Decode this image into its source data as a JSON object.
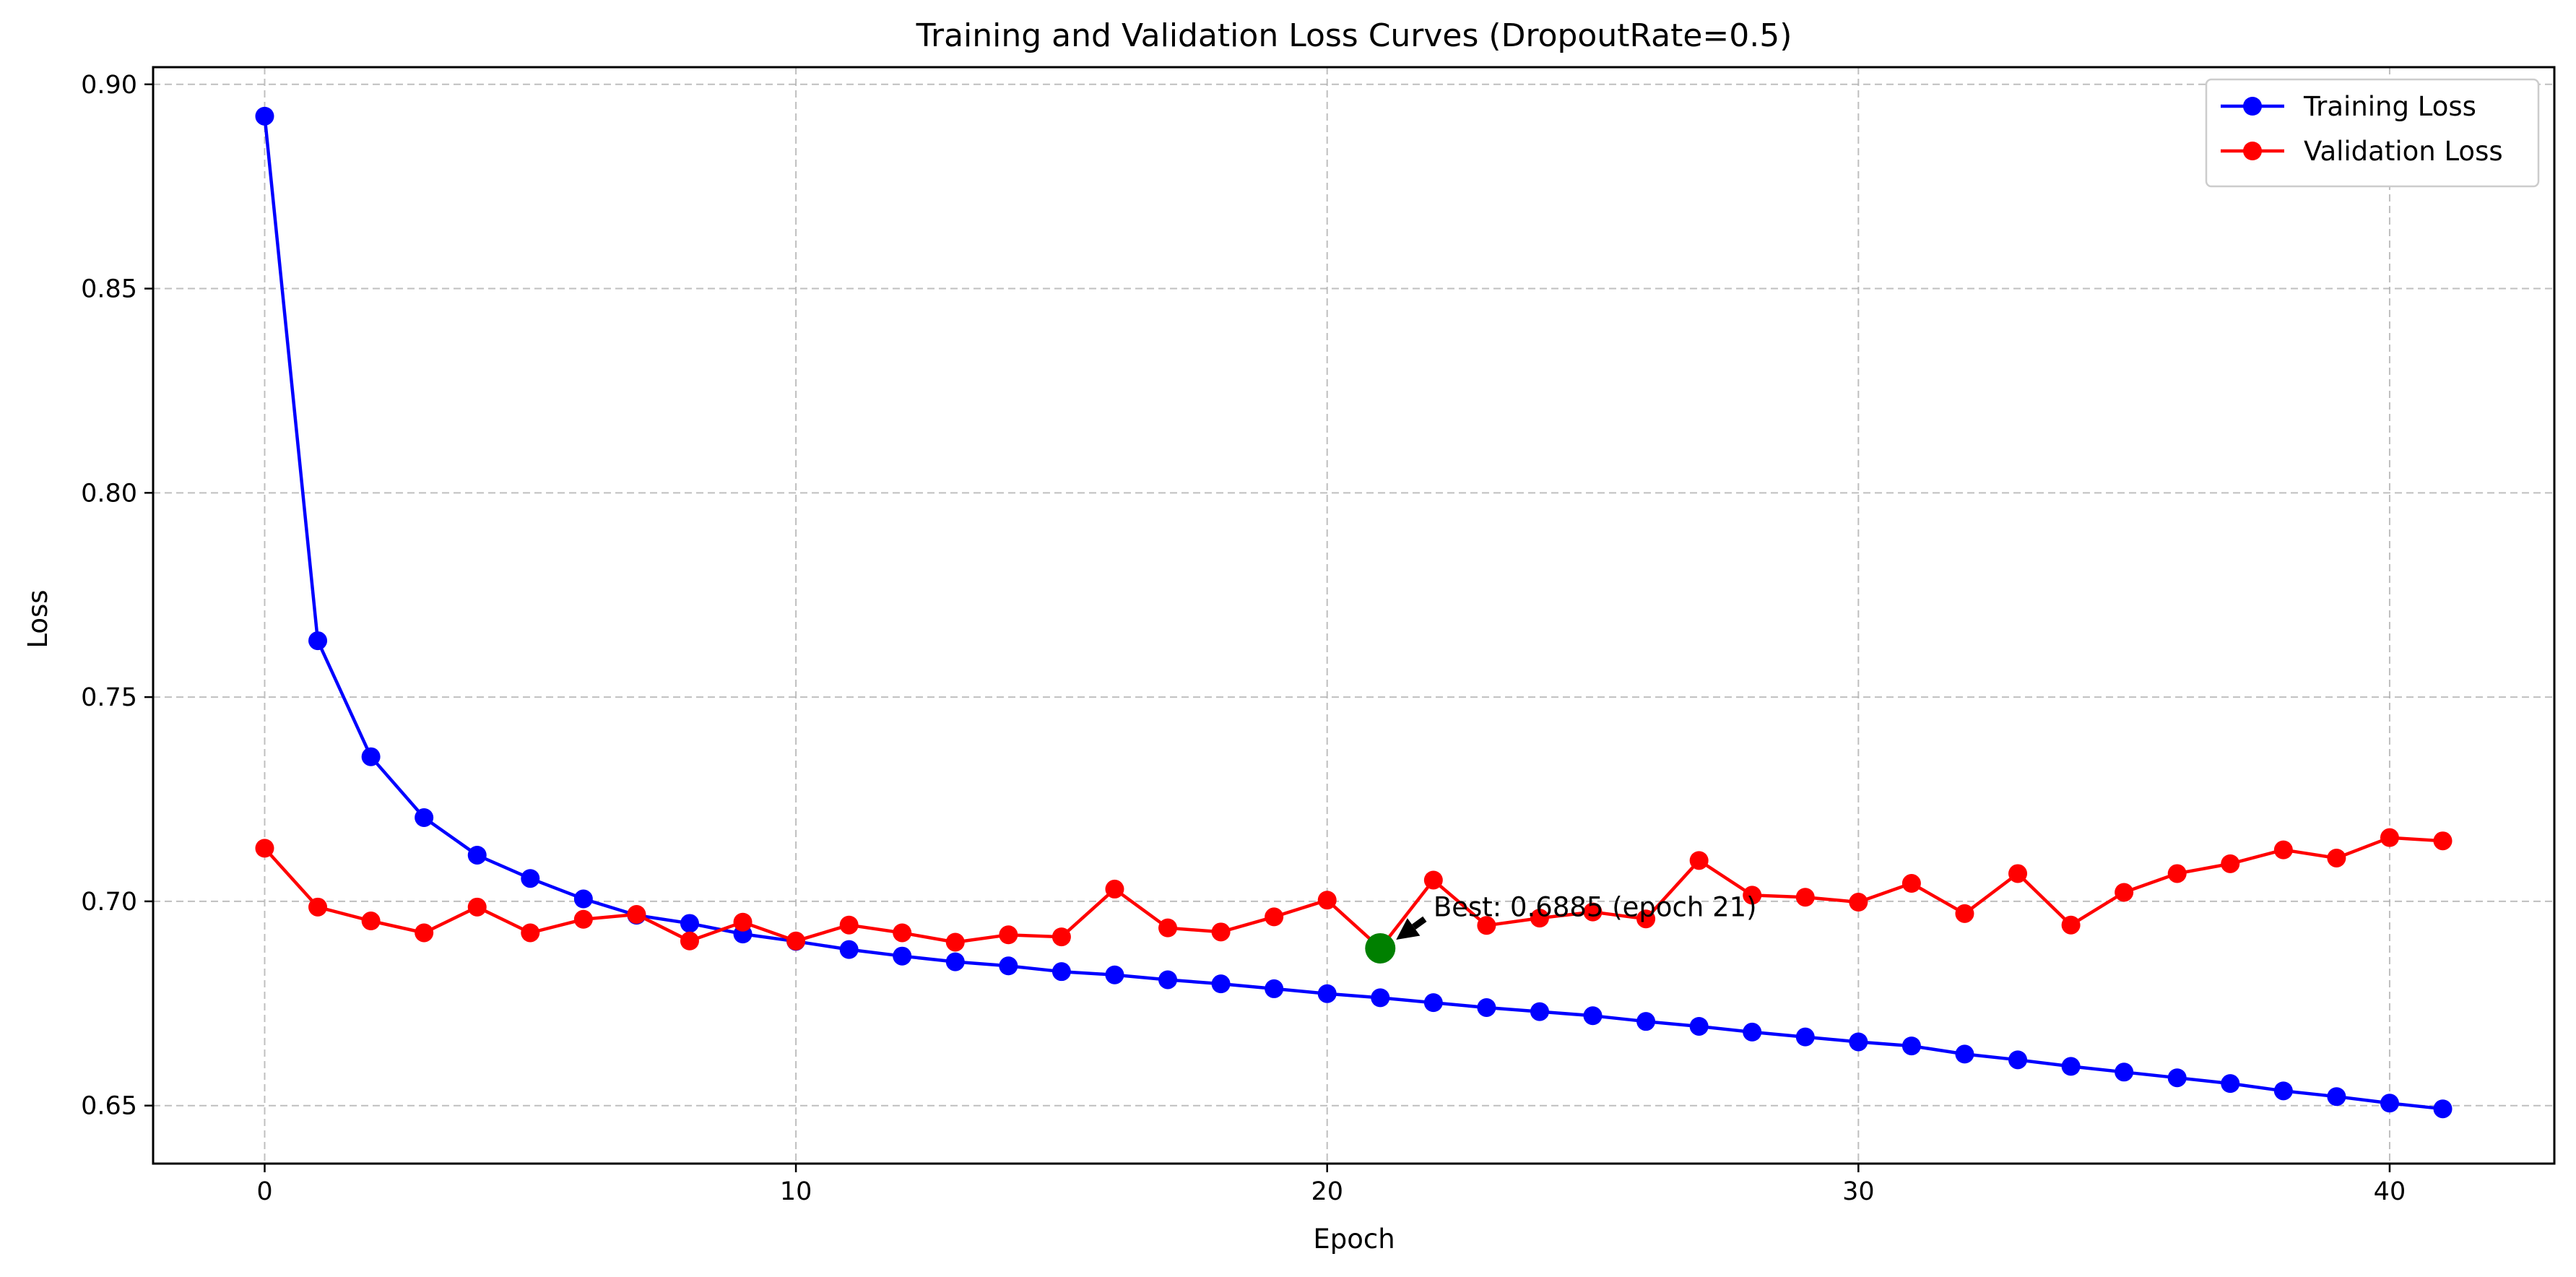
{
  "chart_data": {
    "type": "line",
    "title": "Training and Validation Loss Curves (DropoutRate=0.5)",
    "xlabel": "Epoch",
    "ylabel": "Loss",
    "xlim": [
      -2.1,
      43.1
    ],
    "ylim": [
      0.6358,
      0.9042
    ],
    "xticks": [
      0,
      10,
      20,
      30,
      40
    ],
    "yticks": [
      0.65,
      0.7,
      0.75,
      0.8,
      0.85,
      0.9
    ],
    "ytick_labels": [
      "0.65",
      "0.70",
      "0.75",
      "0.80",
      "0.85",
      "0.90"
    ],
    "grid": true,
    "legend_position": "top-right",
    "x": [
      0,
      1,
      2,
      3,
      4,
      5,
      6,
      7,
      8,
      9,
      10,
      11,
      12,
      13,
      14,
      15,
      16,
      17,
      18,
      19,
      20,
      21,
      22,
      23,
      24,
      25,
      26,
      27,
      28,
      29,
      30,
      31,
      32,
      33,
      34,
      35,
      36,
      37,
      38,
      39,
      40,
      41
    ],
    "series": [
      {
        "name": "Training Loss",
        "color": "#0000ff",
        "values": [
          0.8922,
          0.7638,
          0.7354,
          0.7205,
          0.7113,
          0.7056,
          0.7006,
          0.6966,
          0.6946,
          0.692,
          0.6902,
          0.6882,
          0.6866,
          0.6852,
          0.6842,
          0.6828,
          0.682,
          0.6808,
          0.6798,
          0.6786,
          0.6774,
          0.6764,
          0.6752,
          0.674,
          0.673,
          0.672,
          0.6706,
          0.6694,
          0.668,
          0.6668,
          0.6656,
          0.6646,
          0.6626,
          0.6612,
          0.6596,
          0.6582,
          0.6568,
          0.6554,
          0.6536,
          0.6522,
          0.6506,
          0.6492
        ]
      },
      {
        "name": "Validation Loss",
        "color": "#ff0000",
        "values": [
          0.713,
          0.6986,
          0.6952,
          0.6923,
          0.6986,
          0.6923,
          0.6956,
          0.6968,
          0.6903,
          0.6949,
          0.6903,
          0.6942,
          0.6923,
          0.69,
          0.6918,
          0.6913,
          0.703,
          0.6935,
          0.6925,
          0.6962,
          0.7003,
          0.6885,
          0.7052,
          0.6941,
          0.6959,
          0.6974,
          0.6957,
          0.71,
          0.7015,
          0.701,
          0.6998,
          0.7044,
          0.697,
          0.7068,
          0.6942,
          0.7022,
          0.7068,
          0.7092,
          0.7126,
          0.7106,
          0.7156,
          0.7148
        ]
      }
    ],
    "annotation": {
      "text": "Best: 0.6885 (epoch 21)",
      "x": 21,
      "y": 0.6885,
      "text_x": 22,
      "text_y": 0.6985,
      "marker_color": "#008000"
    }
  }
}
